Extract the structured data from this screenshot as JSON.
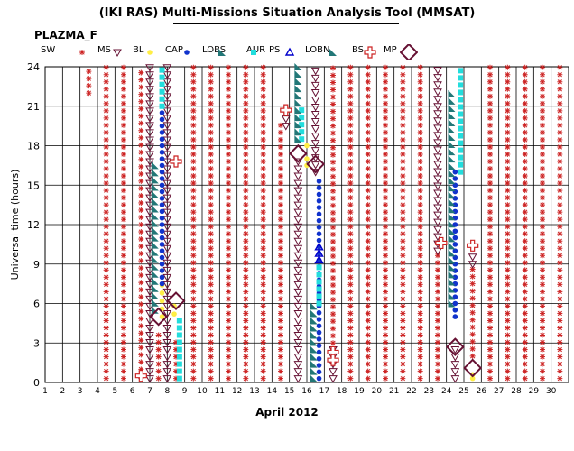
{
  "title": "(IKI RAS) Multi-Missions Situation Analysis Tool (MMSAT)",
  "mission": "PLAZMA_F",
  "legend": [
    {
      "code": "SW",
      "symbol": "sw-asterisk",
      "color": "#cc2222"
    },
    {
      "code": "MS",
      "symbol": "ms-triangle-down",
      "color": "#661133"
    },
    {
      "code": "BL",
      "symbol": "bl-dot",
      "color": "#ffee44"
    },
    {
      "code": "CAP",
      "symbol": "cap-dot",
      "color": "#1133cc"
    },
    {
      "code": "LOBS",
      "symbol": "lobs-triangle",
      "color": "#227777"
    },
    {
      "code": "AUR",
      "symbol": "aur-square",
      "color": "#22dddd"
    },
    {
      "code": "PS",
      "symbol": "ps-triangle-up",
      "color": "#0000cc"
    },
    {
      "code": "LOBN",
      "symbol": "lobn-triangle",
      "color": "#227777"
    },
    {
      "code": "BS",
      "symbol": "bs-cross",
      "color": "#cc2222"
    },
    {
      "code": "MP",
      "symbol": "mp-diamond",
      "color": "#661133"
    }
  ],
  "chart_data": {
    "type": "scatter",
    "xlabel": "April 2012",
    "ylabel": "Universal time (hours)",
    "x_ticks": [
      1,
      2,
      3,
      4,
      5,
      6,
      7,
      8,
      9,
      10,
      11,
      12,
      13,
      14,
      15,
      16,
      17,
      18,
      19,
      20,
      21,
      22,
      23,
      24,
      25,
      26,
      27,
      28,
      29,
      30
    ],
    "y_ticks": [
      0,
      3,
      6,
      9,
      12,
      15,
      18,
      21,
      24
    ],
    "xlim": [
      1,
      31
    ],
    "ylim": [
      0,
      24
    ],
    "grid": true,
    "series": [
      {
        "name": "SW",
        "color": "#cc2222",
        "segments": [
          {
            "day": 3.5,
            "from": 22.0,
            "to": 24.0
          },
          {
            "day": 4.5,
            "from": 0.3,
            "to": 24.0
          },
          {
            "day": 5.5,
            "from": 0.3,
            "to": 24.0
          },
          {
            "day": 6.5,
            "from": 1.0,
            "to": 24.0
          },
          {
            "day": 7.5,
            "from": 0.3,
            "to": 4.0
          },
          {
            "day": 8.5,
            "from": 0.3,
            "to": 3.5
          },
          {
            "day": 9.5,
            "from": 0.3,
            "to": 24.0
          },
          {
            "day": 10.5,
            "from": 0.3,
            "to": 24.0
          },
          {
            "day": 11.5,
            "from": 0.3,
            "to": 24.0
          },
          {
            "day": 12.5,
            "from": 0.3,
            "to": 24.0
          },
          {
            "day": 13.5,
            "from": 0.3,
            "to": 24.0
          },
          {
            "day": 14.5,
            "from": 0.3,
            "to": 20.0
          },
          {
            "day": 17.5,
            "from": 3.0,
            "to": 24.0
          },
          {
            "day": 18.5,
            "from": 0.3,
            "to": 24.0
          },
          {
            "day": 19.5,
            "from": 0.3,
            "to": 24.0
          },
          {
            "day": 20.5,
            "from": 0.3,
            "to": 24.0
          },
          {
            "day": 21.5,
            "from": 0.3,
            "to": 24.0
          },
          {
            "day": 22.5,
            "from": 0.3,
            "to": 24.0
          },
          {
            "day": 23.5,
            "from": 0.3,
            "to": 10.0
          },
          {
            "day": 25.5,
            "from": 2.0,
            "to": 9.0
          },
          {
            "day": 26.5,
            "from": 0.3,
            "to": 24.0
          },
          {
            "day": 27.5,
            "from": 0.3,
            "to": 24.0
          },
          {
            "day": 28.5,
            "from": 0.3,
            "to": 24.0
          },
          {
            "day": 29.5,
            "from": 0.3,
            "to": 24.0
          },
          {
            "day": 30.5,
            "from": 0.3,
            "to": 24.0
          }
        ]
      },
      {
        "name": "MS",
        "color": "#661133",
        "segments": [
          {
            "day": 6.5,
            "from": 0.3,
            "to": 0.6
          },
          {
            "day": 7.0,
            "from": 0.3,
            "to": 24.0
          },
          {
            "day": 8.0,
            "from": 0.3,
            "to": 24.0
          },
          {
            "day": 14.8,
            "from": 19.5,
            "to": 21.0
          },
          {
            "day": 15.5,
            "from": 0.3,
            "to": 17.0
          },
          {
            "day": 16.5,
            "from": 16.0,
            "to": 24.0
          },
          {
            "day": 17.5,
            "from": 0.3,
            "to": 3.0
          },
          {
            "day": 23.5,
            "from": 10.0,
            "to": 24.0
          },
          {
            "day": 24.5,
            "from": 0.3,
            "to": 3.0
          },
          {
            "day": 25.5,
            "from": 9.0,
            "to": 10.0
          }
        ]
      },
      {
        "name": "BL",
        "color": "#ffee44",
        "points": [
          {
            "x": 7.7,
            "y": 5.0
          },
          {
            "x": 7.7,
            "y": 5.6
          },
          {
            "x": 7.7,
            "y": 6.2
          },
          {
            "x": 7.7,
            "y": 6.8
          },
          {
            "x": 7.7,
            "y": 7.4
          },
          {
            "x": 8.4,
            "y": 5.2
          },
          {
            "x": 8.4,
            "y": 5.8
          },
          {
            "x": 16.0,
            "y": 16.5
          },
          {
            "x": 16.0,
            "y": 17.0
          },
          {
            "x": 16.0,
            "y": 18.0
          },
          {
            "x": 25.5,
            "y": 0.3
          },
          {
            "x": 25.5,
            "y": 0.6
          }
        ]
      },
      {
        "name": "CAP",
        "color": "#1133cc",
        "segments": [
          {
            "day": 7.7,
            "from": 7.5,
            "to": 21.0
          },
          {
            "day": 16.7,
            "from": 0.3,
            "to": 15.5
          },
          {
            "day": 24.5,
            "from": 5.0,
            "to": 16.0
          }
        ]
      },
      {
        "name": "AUR",
        "color": "#22dddd",
        "segments": [
          {
            "day": 7.7,
            "from": 21.0,
            "to": 24.0
          },
          {
            "day": 8.7,
            "from": 0.3,
            "to": 5.0
          },
          {
            "day": 15.7,
            "from": 18.5,
            "to": 21.0
          },
          {
            "day": 16.7,
            "from": 6.0,
            "to": 9.0
          },
          {
            "day": 24.8,
            "from": 16.0,
            "to": 24.0
          }
        ]
      },
      {
        "name": "LOBS",
        "color": "#227777",
        "segments": [
          {
            "day": 7.3,
            "from": 5.5,
            "to": 16.5
          },
          {
            "day": 15.5,
            "from": 18.5,
            "to": 24.0
          },
          {
            "day": 16.4,
            "from": 0.3,
            "to": 6.0
          },
          {
            "day": 24.3,
            "from": 6.0,
            "to": 22.0
          }
        ]
      },
      {
        "name": "PS",
        "color": "#0000cc",
        "points": [
          {
            "x": 16.7,
            "y": 9.3
          },
          {
            "x": 16.7,
            "y": 9.8
          },
          {
            "x": 16.7,
            "y": 10.3
          }
        ]
      },
      {
        "name": "BS",
        "color": "#cc2222",
        "points": [
          {
            "x": 6.5,
            "y": 0.5
          },
          {
            "x": 8.5,
            "y": 16.8
          },
          {
            "x": 14.8,
            "y": 20.7
          },
          {
            "x": 17.5,
            "y": 2.3
          },
          {
            "x": 17.5,
            "y": 1.7
          },
          {
            "x": 23.7,
            "y": 10.6
          },
          {
            "x": 25.5,
            "y": 10.4
          }
        ]
      },
      {
        "name": "MP",
        "color": "#661133",
        "points": [
          {
            "x": 7.5,
            "y": 5.0
          },
          {
            "x": 8.5,
            "y": 6.2
          },
          {
            "x": 15.5,
            "y": 17.4
          },
          {
            "x": 16.5,
            "y": 16.6
          },
          {
            "x": 24.5,
            "y": 2.7
          },
          {
            "x": 25.5,
            "y": 1.1
          }
        ]
      }
    ]
  }
}
